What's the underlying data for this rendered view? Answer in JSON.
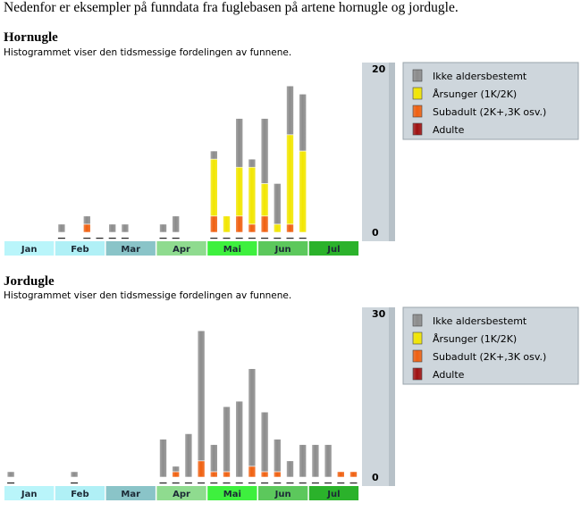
{
  "intro_text": "Nedenfor er eksempler på funndata fra fuglebasen på artene hornugle og jordugle.",
  "colors": {
    "ikke": "#8c8c8c",
    "arsunger": "#f2e600",
    "subadult": "#f06010",
    "adulte": "#a01010",
    "panel": "#ced6dc",
    "months": [
      "#b9f5fa",
      "#b0f0f6",
      "#8ac4c8",
      "#8fdb8f",
      "#3ef03e",
      "#5cc85c",
      "#2bb22b"
    ]
  },
  "months": [
    "Jan",
    "Feb",
    "Mar",
    "Apr",
    "Mai",
    "Jun",
    "Jul"
  ],
  "legend": [
    "Ikke aldersbestemt",
    "Årsunger (1K/2K)",
    "Subadult (2K+,3K osv.)",
    "Adulte"
  ],
  "chart_data": [
    {
      "type": "bar",
      "stacked": true,
      "title": "Hornugle",
      "subtitle": "Histogrammet viser den tidsmessige fordelingen av funnene.",
      "ylim": [
        0,
        20
      ],
      "yticks": [
        "20",
        "0"
      ],
      "categories": [
        "Jan 1",
        "Jan 2",
        "Jan 3",
        "Jan 4",
        "Feb 1",
        "Feb 2",
        "Feb 3",
        "Feb 4",
        "Mar 1",
        "Mar 2",
        "Mar 3",
        "Mar 4",
        "Apr 1",
        "Apr 2",
        "Apr 3",
        "Apr 4",
        "Mai 1",
        "Mai 2",
        "Mai 3",
        "Mai 4",
        "Jun 1",
        "Jun 2",
        "Jun 3",
        "Jun 4",
        "Jul 1",
        "Jul 2",
        "Jul 3",
        "Jul 4"
      ],
      "series": [
        {
          "name": "Adulte",
          "values": [
            0,
            0,
            0,
            0,
            0,
            0,
            0,
            0,
            0,
            0,
            0,
            0,
            0,
            0,
            0,
            0,
            0,
            0,
            0,
            0,
            0,
            0,
            0,
            0,
            0,
            0,
            0,
            0
          ]
        },
        {
          "name": "Subadult (2K+,3K osv.)",
          "values": [
            0,
            0,
            0,
            0,
            0,
            0,
            1,
            0,
            0,
            0,
            0,
            0,
            0,
            0,
            0,
            0,
            2,
            0,
            2,
            1,
            2,
            0,
            1,
            0,
            0,
            0,
            0,
            0
          ]
        },
        {
          "name": "Årsunger (1K/2K)",
          "values": [
            0,
            0,
            0,
            0,
            0,
            0,
            0,
            0,
            0,
            0,
            0,
            0,
            0,
            0,
            0,
            0,
            7,
            2,
            6,
            7,
            4,
            1,
            11,
            10,
            0,
            0,
            0,
            0
          ]
        },
        {
          "name": "Ikke aldersbestemt",
          "values": [
            0,
            0,
            0,
            0,
            1,
            0,
            1,
            0,
            1,
            1,
            0,
            0,
            1,
            2,
            0,
            0,
            1,
            0,
            6,
            1,
            8,
            5,
            6,
            7,
            0,
            0,
            0,
            0
          ]
        }
      ],
      "marker_under": [
        false,
        false,
        false,
        false,
        true,
        false,
        true,
        true,
        true,
        true,
        false,
        false,
        true,
        true,
        false,
        false,
        true,
        true,
        true,
        true,
        true,
        true,
        true,
        true,
        false,
        false,
        false,
        false
      ]
    },
    {
      "type": "bar",
      "stacked": true,
      "title": "Jordugle",
      "subtitle": "Histogrammet viser den tidsmessige fordelingen av funnene.",
      "ylim": [
        0,
        30
      ],
      "yticks": [
        "30",
        "0"
      ],
      "categories": [
        "Jan 1",
        "Jan 2",
        "Jan 3",
        "Jan 4",
        "Feb 1",
        "Feb 2",
        "Feb 3",
        "Feb 4",
        "Mar 1",
        "Mar 2",
        "Mar 3",
        "Mar 4",
        "Apr 1",
        "Apr 2",
        "Apr 3",
        "Apr 4",
        "Mai 1",
        "Mai 2",
        "Mai 3",
        "Mai 4",
        "Jun 1",
        "Jun 2",
        "Jun 3",
        "Jun 4",
        "Jul 1",
        "Jul 2",
        "Jul 3",
        "Jul 4"
      ],
      "series": [
        {
          "name": "Adulte",
          "values": [
            0,
            0,
            0,
            0,
            0,
            0,
            0,
            0,
            0,
            0,
            0,
            0,
            0,
            0,
            0,
            0,
            0,
            0,
            0,
            0,
            0,
            0,
            0,
            0,
            0,
            0,
            0,
            0
          ]
        },
        {
          "name": "Subadult (2K+,3K osv.)",
          "values": [
            0,
            0,
            0,
            0,
            0,
            0,
            0,
            0,
            0,
            0,
            0,
            0,
            0,
            1,
            0,
            3,
            1,
            1,
            0,
            2,
            1,
            1,
            0,
            0,
            0,
            0,
            1,
            1
          ]
        },
        {
          "name": "Årsunger (1K/2K)",
          "values": [
            0,
            0,
            0,
            0,
            0,
            0,
            0,
            0,
            0,
            0,
            0,
            0,
            0,
            0,
            0,
            0,
            0,
            0,
            0,
            0,
            0,
            0,
            0,
            0,
            0,
            0,
            0,
            0
          ]
        },
        {
          "name": "Ikke aldersbestemt",
          "values": [
            1,
            0,
            0,
            0,
            0,
            1,
            0,
            0,
            0,
            0,
            0,
            0,
            7,
            1,
            8,
            24,
            5,
            12,
            14,
            18,
            11,
            6,
            3,
            6,
            6,
            6,
            0,
            0
          ]
        }
      ],
      "marker_under": [
        true,
        false,
        false,
        false,
        false,
        true,
        false,
        false,
        false,
        false,
        false,
        false,
        true,
        true,
        true,
        true,
        true,
        true,
        true,
        true,
        true,
        true,
        true,
        true,
        true,
        true,
        true,
        true
      ]
    }
  ]
}
